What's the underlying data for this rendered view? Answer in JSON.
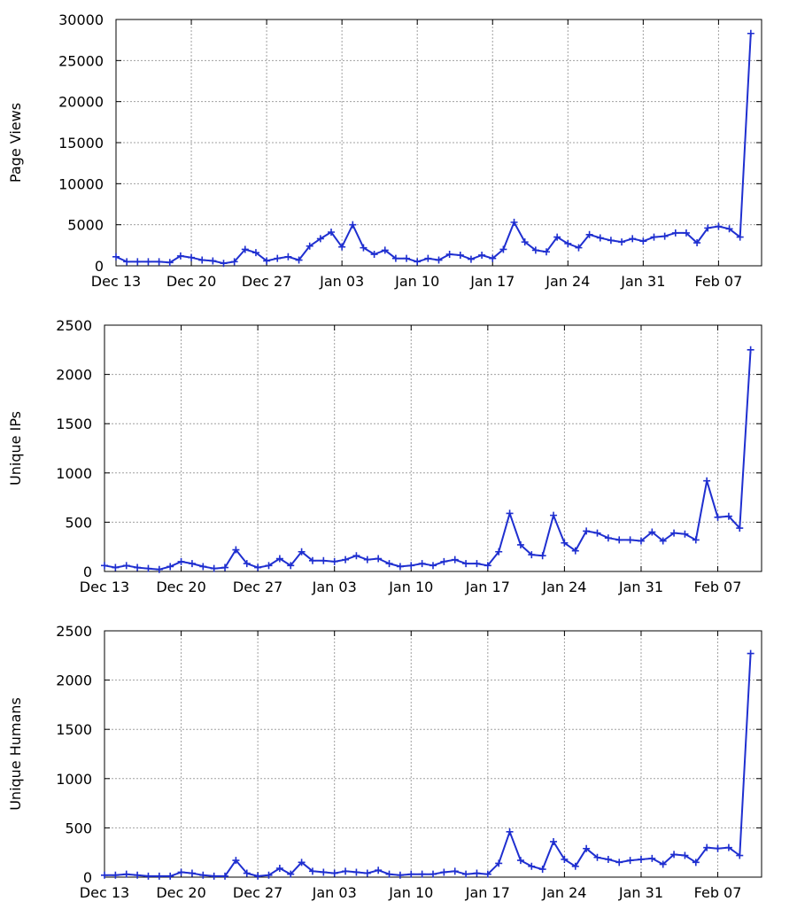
{
  "colors": {
    "series": "#1f2fd0",
    "grid": "#a0a0a0",
    "axis": "#000000"
  },
  "chart_data": [
    {
      "type": "line",
      "ylabel": "Page Views",
      "xlim": [
        "2012-12-13",
        "2013-02-11"
      ],
      "ylim": [
        0,
        30000
      ],
      "yticks": [
        0,
        5000,
        10000,
        15000,
        20000,
        25000,
        30000
      ],
      "xticks": [
        {
          "date": "2012-12-13",
          "label": "Dec 13"
        },
        {
          "date": "2012-12-20",
          "label": "Dec 20"
        },
        {
          "date": "2012-12-27",
          "label": "Dec 27"
        },
        {
          "date": "2013-01-03",
          "label": "Jan 03"
        },
        {
          "date": "2013-01-10",
          "label": "Jan 10"
        },
        {
          "date": "2013-01-17",
          "label": "Jan 17"
        },
        {
          "date": "2013-01-24",
          "label": "Jan 24"
        },
        {
          "date": "2013-01-31",
          "label": "Jan 31"
        },
        {
          "date": "2013-02-07",
          "label": "Feb 07"
        }
      ],
      "grid": true,
      "marker": "plus",
      "series": [
        {
          "start_date": "2012-12-13",
          "values": [
            1100,
            500,
            500,
            500,
            500,
            400,
            1200,
            1000,
            700,
            600,
            300,
            500,
            2000,
            1600,
            600,
            900,
            1100,
            700,
            2400,
            3300,
            4100,
            2300,
            5000,
            2200,
            1400,
            1900,
            900,
            900,
            500,
            900,
            700,
            1400,
            1300,
            800,
            1300,
            900,
            2000,
            5300,
            2900,
            1900,
            1700,
            3500,
            2700,
            2200,
            3800,
            3400,
            3100,
            2900,
            3300,
            3000,
            3500,
            3600,
            4000,
            4000,
            2800,
            4600,
            4800,
            4500,
            3500,
            28300
          ]
        }
      ]
    },
    {
      "type": "line",
      "ylabel": "Unique IPs",
      "xlim": [
        "2012-12-13",
        "2013-02-11"
      ],
      "ylim": [
        0,
        2500
      ],
      "yticks": [
        0,
        500,
        1000,
        1500,
        2000,
        2500
      ],
      "xticks": [
        {
          "date": "2012-12-13",
          "label": "Dec 13"
        },
        {
          "date": "2012-12-20",
          "label": "Dec 20"
        },
        {
          "date": "2012-12-27",
          "label": "Dec 27"
        },
        {
          "date": "2013-01-03",
          "label": "Jan 03"
        },
        {
          "date": "2013-01-10",
          "label": "Jan 10"
        },
        {
          "date": "2013-01-17",
          "label": "Jan 17"
        },
        {
          "date": "2013-01-24",
          "label": "Jan 24"
        },
        {
          "date": "2013-01-31",
          "label": "Jan 31"
        },
        {
          "date": "2013-02-07",
          "label": "Feb 07"
        }
      ],
      "grid": true,
      "marker": "plus",
      "series": [
        {
          "start_date": "2012-12-13",
          "values": [
            60,
            40,
            60,
            40,
            30,
            20,
            50,
            100,
            80,
            50,
            30,
            40,
            220,
            80,
            40,
            60,
            130,
            60,
            200,
            110,
            110,
            100,
            120,
            160,
            120,
            130,
            80,
            50,
            60,
            80,
            60,
            100,
            120,
            80,
            80,
            60,
            200,
            590,
            270,
            170,
            160,
            570,
            290,
            210,
            410,
            390,
            340,
            320,
            320,
            310,
            400,
            310,
            390,
            380,
            320,
            920,
            550,
            560,
            440,
            2250
          ]
        }
      ]
    },
    {
      "type": "line",
      "ylabel": "Unique Humans",
      "xlim": [
        "2012-12-13",
        "2013-02-11"
      ],
      "ylim": [
        0,
        2500
      ],
      "yticks": [
        0,
        500,
        1000,
        1500,
        2000,
        2500
      ],
      "xticks": [
        {
          "date": "2012-12-13",
          "label": "Dec 13"
        },
        {
          "date": "2012-12-20",
          "label": "Dec 20"
        },
        {
          "date": "2012-12-27",
          "label": "Dec 27"
        },
        {
          "date": "2013-01-03",
          "label": "Jan 03"
        },
        {
          "date": "2013-01-10",
          "label": "Jan 10"
        },
        {
          "date": "2013-01-17",
          "label": "Jan 17"
        },
        {
          "date": "2013-01-24",
          "label": "Jan 24"
        },
        {
          "date": "2013-01-31",
          "label": "Jan 31"
        },
        {
          "date": "2013-02-07",
          "label": "Feb 07"
        }
      ],
      "grid": true,
      "marker": "plus",
      "series": [
        {
          "start_date": "2012-12-13",
          "values": [
            20,
            20,
            30,
            20,
            10,
            10,
            10,
            50,
            40,
            20,
            10,
            10,
            170,
            40,
            10,
            20,
            90,
            30,
            150,
            60,
            50,
            40,
            60,
            50,
            40,
            70,
            30,
            20,
            30,
            30,
            30,
            50,
            60,
            30,
            40,
            30,
            140,
            460,
            170,
            110,
            80,
            360,
            180,
            110,
            290,
            200,
            180,
            150,
            170,
            180,
            190,
            130,
            230,
            220,
            150,
            300,
            290,
            300,
            220,
            2270
          ]
        }
      ]
    }
  ]
}
